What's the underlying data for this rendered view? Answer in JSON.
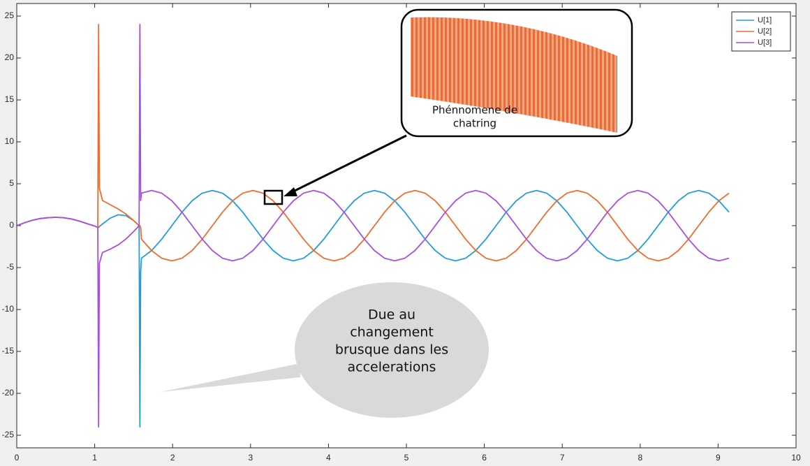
{
  "chart_data": {
    "type": "line",
    "x": [
      0,
      0.1,
      0.2,
      0.3,
      0.4,
      0.5,
      0.6,
      0.7,
      0.8,
      0.9,
      1.0,
      1.04,
      1.05,
      1.06,
      1.1,
      1.2,
      1.3,
      1.4,
      1.5,
      1.57,
      1.58,
      1.59,
      1.6,
      1.73,
      1.86,
      1.99,
      2.12,
      2.25,
      2.38,
      2.51,
      2.64,
      2.77,
      2.9,
      3.03,
      3.16,
      3.29,
      3.42,
      3.55,
      3.68,
      3.81,
      3.94,
      4.07,
      4.2,
      4.33,
      4.46,
      4.59,
      4.72,
      4.85,
      4.98,
      5.11,
      5.24,
      5.37,
      5.5,
      5.63,
      5.76,
      5.89,
      6.02,
      6.15,
      6.28,
      6.41,
      6.54,
      6.67,
      6.8,
      6.93,
      7.06,
      7.19,
      7.32,
      7.45,
      7.58,
      7.71,
      7.84,
      7.97,
      8.1,
      8.23,
      8.36,
      8.49,
      8.62,
      8.75,
      8.88,
      9.01,
      9.14
    ],
    "series": [
      {
        "name": "U[1]",
        "color": "#1f9de0",
        "values": [
          0,
          0.35,
          0.65,
          0.85,
          0.95,
          1.0,
          0.95,
          0.8,
          0.55,
          0.25,
          -0.05,
          -0.2,
          -0.2,
          -0.1,
          0.2,
          0.9,
          1.3,
          1.2,
          0.6,
          0,
          -24,
          -5.5,
          -3.88,
          -2.97,
          -1.61,
          0,
          1.61,
          2.97,
          3.88,
          4.2,
          3.88,
          2.97,
          1.61,
          0,
          -1.61,
          -2.97,
          -3.88,
          -4.2,
          -3.88,
          -2.97,
          -1.61,
          0,
          1.61,
          2.97,
          3.88,
          4.2,
          3.88,
          2.97,
          1.61,
          0,
          -1.61,
          -2.97,
          -3.88,
          -4.2,
          -3.88,
          -2.97,
          -1.61,
          0,
          1.61,
          2.97,
          3.88,
          4.2,
          3.88,
          2.97,
          1.61,
          0,
          -1.61,
          -2.97,
          -3.88,
          -4.2,
          -3.88,
          -2.97,
          -1.61,
          0,
          1.61,
          2.97,
          3.88,
          4.2,
          3.88,
          2.97,
          1.61
        ]
      },
      {
        "name": "U[2]",
        "color": "#f26b2b",
        "values": [
          0,
          0.35,
          0.65,
          0.85,
          0.95,
          1.0,
          0.95,
          0.8,
          0.55,
          0.25,
          -0.05,
          -0.2,
          24,
          4.5,
          3.0,
          2.5,
          2.0,
          1.4,
          0.6,
          0,
          0,
          -0.2,
          -1.61,
          -2.97,
          -3.88,
          -4.2,
          -3.88,
          -2.97,
          -1.61,
          0,
          1.61,
          2.97,
          3.88,
          4.2,
          3.88,
          2.97,
          1.61,
          0,
          -1.61,
          -2.97,
          -3.88,
          -4.2,
          -3.88,
          -2.97,
          -1.61,
          0,
          1.61,
          2.97,
          3.88,
          4.2,
          3.88,
          2.97,
          1.61,
          0,
          -1.61,
          -2.97,
          -3.88,
          -4.2,
          -3.88,
          -2.97,
          -1.61,
          0,
          1.61,
          2.97,
          3.88,
          4.2,
          3.88,
          2.97,
          1.61,
          0,
          -1.61,
          -2.97,
          -3.88,
          -4.2,
          -3.88,
          -2.97,
          -1.61,
          0,
          1.61,
          2.97,
          3.88
        ]
      },
      {
        "name": "U[3]",
        "color": "#a64ee6",
        "values": [
          0,
          0.35,
          0.65,
          0.85,
          0.95,
          1.0,
          0.95,
          0.8,
          0.55,
          0.25,
          -0.05,
          -0.2,
          -24,
          -4.5,
          -3.2,
          -2.8,
          -2.3,
          -1.6,
          -0.7,
          0,
          24,
          3,
          3.88,
          4.2,
          3.88,
          2.97,
          1.61,
          0,
          -1.61,
          -2.97,
          -3.88,
          -4.2,
          -3.88,
          -2.97,
          -1.61,
          0,
          1.61,
          2.97,
          3.88,
          4.2,
          3.88,
          2.97,
          1.61,
          0,
          -1.61,
          -2.97,
          -3.88,
          -4.2,
          -3.88,
          -2.97,
          -1.61,
          0,
          1.61,
          2.97,
          3.88,
          4.2,
          3.88,
          2.97,
          1.61,
          0,
          -1.61,
          -2.97,
          -3.88,
          -4.2,
          -3.88,
          -2.97,
          -1.61,
          0,
          1.61,
          2.97,
          3.88,
          4.2,
          3.88,
          2.97,
          1.61,
          0,
          -1.61,
          -2.97,
          -3.88,
          -4.2,
          -3.88
        ]
      }
    ],
    "xlim": [
      0,
      10
    ],
    "xticks": [
      0,
      1,
      2,
      3,
      4,
      5,
      6,
      7,
      8,
      9,
      10
    ],
    "ylim": [
      -26.5,
      26.5
    ],
    "yticks": [
      -25,
      -20,
      -15,
      -10,
      -5,
      0,
      5,
      10,
      15,
      20,
      25
    ],
    "legend": "top-right",
    "annotations": [
      {
        "lines": [
          "Phénnomene de",
          "chatring"
        ]
      },
      {
        "lines": [
          "Due au",
          "changement",
          "brusque dans les",
          "accelerations"
        ]
      }
    ]
  }
}
